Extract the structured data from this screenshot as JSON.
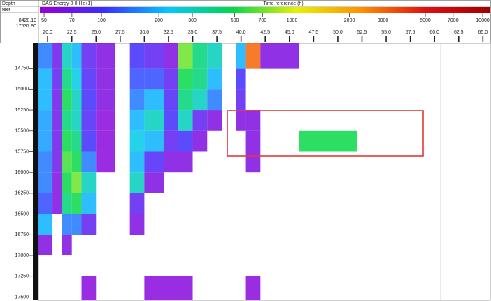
{
  "chart_data": {
    "type": "heatmap",
    "depth_header": "Depth",
    "unit": "feet",
    "depth_range_labels": [
      "8428.10",
      "17537.90"
    ],
    "title": "DAS Energy 0-0 Hz (1)",
    "x_label": "Time reference (h)",
    "log_color": true,
    "colormap": [
      "#9a00d4",
      "#3b2cff",
      "#00c8ff",
      "#00d84a",
      "#e8f000",
      "#ff9000",
      "#e01010",
      "#a00000"
    ],
    "clim": [
      47.5,
      10880
    ],
    "cticks": [
      50,
      70,
      100,
      200,
      300,
      500,
      700,
      1000,
      2000,
      3000,
      5000,
      7000,
      10000
    ],
    "xlim": [
      19.05,
      65.7
    ],
    "xticks": [
      {
        "value": 20,
        "label": "20.0"
      },
      22.5,
      {
        "value": 25,
        "label": "25.0"
      },
      27.5,
      {
        "value": 30,
        "label": "30.0"
      },
      32.5,
      {
        "value": 35,
        "label": "35.0"
      },
      37.5,
      {
        "value": 40,
        "label": "40.0"
      },
      42.5,
      {
        "value": 45,
        "label": "45.0"
      },
      47.5,
      {
        "value": 50,
        "label": "50.0"
      },
      52.5,
      {
        "value": 55,
        "label": "55.0"
      },
      57.5,
      {
        "value": 60,
        "label": "60.0"
      },
      62.5,
      {
        "value": 65,
        "label": "65.0"
      }
    ],
    "ylim": [
      14450,
      17530
    ],
    "yticks": [
      14750,
      15000,
      15250,
      15500,
      15750,
      16000,
      16250,
      16500,
      16750,
      17000,
      17250,
      17500
    ],
    "x_edges": [
      19.05,
      20.5,
      21.5,
      22.5,
      23.5,
      25,
      27,
      28.5,
      30,
      32,
      33.5,
      35,
      36.5,
      38,
      39.5,
      40.5,
      42,
      46,
      52,
      58,
      65.7
    ],
    "y_edges": [
      14450,
      14750,
      15000,
      15250,
      15500,
      15750,
      16000,
      16250,
      16500,
      16750,
      17000,
      17250,
      17530
    ],
    "z": [
      [
        150,
        70,
        300,
        200,
        80,
        60,
        null,
        100,
        80,
        60,
        700,
        400,
        300,
        null,
        200,
        3000,
        60,
        null,
        null,
        null
      ],
      [
        200,
        80,
        400,
        250,
        90,
        60,
        null,
        120,
        120,
        80,
        500,
        400,
        200,
        null,
        100,
        null,
        null,
        null,
        null,
        null
      ],
      [
        200,
        70,
        500,
        300,
        100,
        60,
        null,
        150,
        200,
        90,
        400,
        300,
        150,
        null,
        80,
        null,
        null,
        null,
        null,
        null
      ],
      [
        180,
        70,
        400,
        300,
        90,
        55,
        null,
        200,
        300,
        100,
        300,
        80,
        60,
        null,
        60,
        60,
        null,
        null,
        null,
        null
      ],
      [
        180,
        70,
        500,
        400,
        100,
        55,
        null,
        250,
        200,
        80,
        100,
        60,
        null,
        null,
        null,
        60,
        null,
        500,
        null,
        null
      ],
      [
        150,
        70,
        600,
        500,
        150,
        55,
        null,
        200,
        90,
        60,
        60,
        null,
        null,
        null,
        null,
        60,
        null,
        null,
        null,
        null
      ],
      [
        150,
        60,
        500,
        700,
        300,
        null,
        null,
        300,
        60,
        null,
        null,
        null,
        null,
        null,
        null,
        null,
        null,
        null,
        null,
        null
      ],
      [
        120,
        60,
        400,
        500,
        200,
        null,
        null,
        80,
        null,
        null,
        null,
        null,
        null,
        null,
        null,
        null,
        null,
        null,
        null,
        null
      ],
      [
        200,
        null,
        150,
        150,
        80,
        null,
        null,
        60,
        null,
        null,
        null,
        null,
        null,
        null,
        null,
        null,
        null,
        null,
        null,
        null
      ],
      [
        60,
        null,
        60,
        null,
        null,
        null,
        null,
        null,
        null,
        null,
        null,
        null,
        null,
        null,
        null,
        null,
        null,
        null,
        null,
        null
      ],
      [
        null,
        null,
        null,
        null,
        null,
        null,
        null,
        null,
        null,
        null,
        null,
        null,
        null,
        null,
        null,
        null,
        null,
        null,
        null,
        null
      ],
      [
        null,
        null,
        null,
        null,
        55,
        null,
        null,
        null,
        55,
        55,
        55,
        null,
        null,
        null,
        null,
        55,
        null,
        null,
        null,
        null
      ]
    ]
  }
}
